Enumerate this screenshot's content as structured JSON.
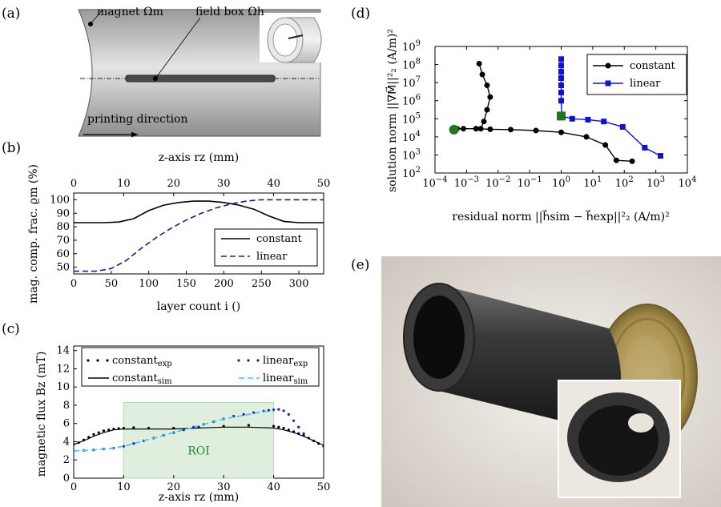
{
  "panels": {
    "a": {
      "label": "(a)",
      "magnet_label": "magnet Ωm",
      "fieldbox_label": "field box Ωh",
      "direction_label": "printing direction"
    },
    "b": {
      "label": "(b)"
    },
    "c": {
      "label": "(c)",
      "roi_label": "ROI"
    },
    "d": {
      "label": "(d)"
    },
    "e": {
      "label": "(e)"
    }
  },
  "colors": {
    "constant": "#000000",
    "linear_b": "#1a1aa0",
    "linear_exp": "#1a1acc",
    "linear_sim": "#33ccee",
    "blue_d": "#1010dd",
    "green_marker": "#1a7a1a",
    "roi_fill": "#dfeedd"
  },
  "chart_data": [
    {
      "id": "b",
      "type": "line",
      "xlabel_top": "z-axis rz (mm)",
      "xlabel": "layer count i ()",
      "ylabel": "mag. comp. frac. ϱm (%)",
      "xlim": [
        0,
        333
      ],
      "ylim": [
        45,
        105
      ],
      "xtop_lim": [
        0,
        50
      ],
      "xticks": [
        0,
        50,
        100,
        150,
        200,
        250,
        300
      ],
      "xtop_ticks": [
        0,
        10,
        20,
        30,
        40,
        50
      ],
      "yticks": [
        50,
        60,
        70,
        80,
        90,
        100
      ],
      "legend": "bottom-right",
      "series": [
        {
          "name": "constant",
          "style": "solid",
          "x": [
            0,
            40,
            60,
            80,
            100,
            120,
            140,
            160,
            180,
            200,
            220,
            240,
            260,
            280,
            300,
            333
          ],
          "y": [
            83,
            83,
            83.5,
            86,
            92,
            96,
            98,
            99,
            99,
            98,
            96,
            93,
            88,
            84,
            83,
            83
          ]
        },
        {
          "name": "linear",
          "style": "dashed",
          "x": [
            0,
            30,
            50,
            70,
            90,
            110,
            130,
            150,
            170,
            190,
            210,
            230,
            250,
            270,
            290,
            333
          ],
          "y": [
            47,
            47,
            49,
            55,
            64,
            72,
            79,
            85,
            90,
            94,
            97,
            99,
            100,
            100,
            100,
            100
          ]
        }
      ]
    },
    {
      "id": "c",
      "type": "line",
      "xlabel": "z-axis rz (mm)",
      "ylabel": "magnetic flux Bz (mT)",
      "xlim": [
        0,
        50
      ],
      "ylim": [
        0,
        14.5
      ],
      "xticks": [
        0,
        10,
        20,
        30,
        40,
        50
      ],
      "yticks": [
        0,
        2,
        4,
        6,
        8,
        10,
        12,
        14
      ],
      "roi": [
        10,
        40
      ],
      "legend": "top",
      "series": [
        {
          "name": "constant",
          "sub": "exp",
          "style": "dots",
          "x": [
            0,
            1,
            2,
            3,
            4,
            5,
            6,
            7,
            8,
            9,
            10,
            12,
            15,
            20,
            25,
            30,
            35,
            40,
            41,
            42,
            43,
            44,
            45,
            46,
            47,
            48,
            49,
            50
          ],
          "y": [
            3.7,
            3.9,
            4.2,
            4.5,
            4.8,
            5.0,
            5.2,
            5.3,
            5.4,
            5.45,
            5.5,
            5.55,
            5.5,
            5.5,
            5.6,
            5.7,
            5.8,
            5.7,
            5.6,
            5.5,
            5.3,
            5.1,
            4.9,
            4.7,
            4.4,
            4.1,
            3.8,
            3.5
          ]
        },
        {
          "name": "constant",
          "sub": "sim",
          "style": "solid",
          "x": [
            0,
            2,
            4,
            6,
            8,
            10,
            15,
            20,
            25,
            30,
            35,
            40,
            42,
            44,
            46,
            48,
            50
          ],
          "y": [
            3.7,
            4.1,
            4.6,
            5.0,
            5.3,
            5.4,
            5.4,
            5.4,
            5.5,
            5.6,
            5.6,
            5.5,
            5.3,
            5.0,
            4.6,
            4.1,
            3.6
          ]
        },
        {
          "name": "linear",
          "sub": "exp",
          "style": "dots",
          "x": [
            0,
            2,
            4,
            6,
            8,
            10,
            12,
            14,
            16,
            18,
            20,
            22,
            24,
            26,
            28,
            30,
            32,
            34,
            36,
            38,
            39,
            40,
            41,
            42,
            43,
            44,
            45,
            46
          ],
          "y": [
            3.0,
            3.05,
            3.1,
            3.2,
            3.3,
            3.5,
            3.8,
            4.1,
            4.4,
            4.7,
            5.0,
            5.3,
            5.6,
            5.9,
            6.2,
            6.5,
            6.8,
            7.0,
            7.2,
            7.35,
            7.45,
            7.5,
            7.55,
            7.4,
            7.0,
            6.3,
            5.6,
            4.9
          ]
        },
        {
          "name": "linear",
          "sub": "sim",
          "style": "dashed",
          "x": [
            0,
            4,
            8,
            10,
            14,
            18,
            22,
            26,
            30,
            34,
            38,
            40
          ],
          "y": [
            3.0,
            3.1,
            3.3,
            3.5,
            4.1,
            4.7,
            5.3,
            5.9,
            6.5,
            6.9,
            7.3,
            7.4
          ]
        }
      ]
    },
    {
      "id": "d",
      "type": "scatter",
      "xscale": "log",
      "yscale": "log",
      "xlabel": "residual norm ||h⃗sim − h⃗exp||²₂ (A/m)²",
      "ylabel": "solution norm ||∇M⃗||²₂ (A/m)²",
      "xlim_exp": [
        -4,
        4
      ],
      "ylim_exp": [
        2,
        9
      ],
      "legend": "top-right",
      "series": [
        {
          "name": "constant",
          "marker": "circle",
          "x_exp": [
            -2.6,
            -2.5,
            -2.35,
            -2.25,
            -2.35,
            -2.45,
            -2.55,
            -2.7,
            -3.35,
            -3.3,
            -3.1,
            -2.7,
            -2.25,
            -1.6,
            -0.8,
            0.0,
            0.8,
            1.4,
            1.75,
            2.25
          ],
          "y_exp": [
            8.05,
            7.45,
            6.85,
            6.2,
            5.5,
            4.85,
            4.45,
            4.45,
            4.45,
            4.45,
            4.45,
            4.45,
            4.42,
            4.4,
            4.35,
            4.25,
            4.0,
            3.55,
            2.7,
            2.65
          ]
        },
        {
          "name": "linear",
          "marker": "square",
          "x_exp": [
            0.0,
            0.0,
            0.0,
            0.0,
            0.0,
            0.0,
            0.0,
            0.02,
            0.35,
            0.85,
            1.35,
            1.95,
            2.65,
            3.15
          ],
          "y_exp": [
            8.3,
            7.95,
            7.6,
            7.25,
            6.85,
            6.45,
            6.0,
            5.15,
            5.0,
            4.95,
            4.85,
            4.55,
            3.4,
            2.95
          ]
        }
      ],
      "highlight": [
        {
          "x_exp": -3.4,
          "y_exp": 4.4,
          "marker": "circle"
        },
        {
          "x_exp": 0.0,
          "y_exp": 5.15,
          "marker": "square"
        }
      ]
    }
  ]
}
